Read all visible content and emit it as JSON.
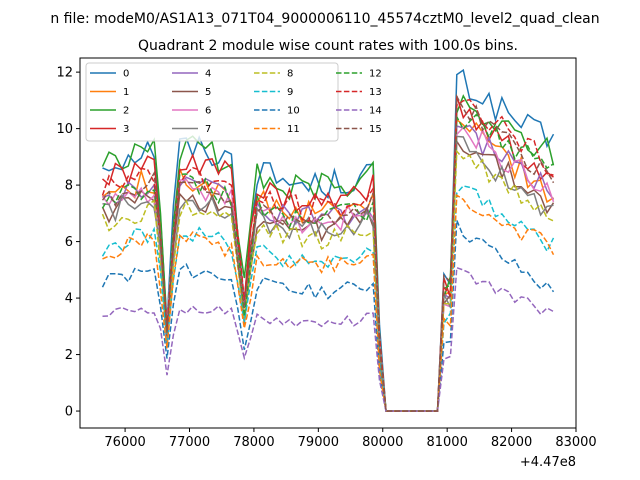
{
  "suptitle": "n file: modeM0/AS1A13_071T04_9000006110_45574cztM0_level2_quad_clean",
  "chart_data": {
    "type": "line",
    "title": "Quadrant 2 module wise count rates with 100.0s bins.",
    "xlabel": "",
    "ylabel": "",
    "x_offset_label": "+4.47e8",
    "xlim": [
      75300,
      83000
    ],
    "ylim": [
      -0.6,
      12.5
    ],
    "xticks": [
      76000,
      77000,
      78000,
      79000,
      80000,
      81000,
      82000,
      83000
    ],
    "yticks": [
      0,
      2,
      4,
      6,
      8,
      10,
      12
    ],
    "grid": false,
    "legend": {
      "position": "top-left",
      "columns": 4
    },
    "series": [
      {
        "name": "0",
        "color": "#1f77b4",
        "dash": "solid",
        "base": 8.7,
        "peak": 11.8,
        "end": 9.4
      },
      {
        "name": "1",
        "color": "#ff7f0e",
        "dash": "solid",
        "base": 7.6,
        "peak": 10.5,
        "end": 7.6
      },
      {
        "name": "2",
        "color": "#2ca02c",
        "dash": "solid",
        "base": 8.6,
        "peak": 11.0,
        "end": 9.2
      },
      {
        "name": "3",
        "color": "#d62728",
        "dash": "solid",
        "base": 8.1,
        "peak": 10.9,
        "end": 8.2
      },
      {
        "name": "4",
        "color": "#9467bd",
        "dash": "solid",
        "base": 7.4,
        "peak": 10.1,
        "end": 7.8
      },
      {
        "name": "5",
        "color": "#8c564b",
        "dash": "solid",
        "base": 7.0,
        "peak": 9.8,
        "end": 7.2
      },
      {
        "name": "6",
        "color": "#e377c2",
        "dash": "solid",
        "base": 7.3,
        "peak": 10.3,
        "end": 7.6
      },
      {
        "name": "7",
        "color": "#7f7f7f",
        "dash": "solid",
        "base": 7.0,
        "peak": 9.6,
        "end": 7.0
      },
      {
        "name": "8",
        "color": "#bcbd22",
        "dash": "dashed",
        "base": 6.6,
        "peak": 9.3,
        "end": 6.8
      },
      {
        "name": "9",
        "color": "#17becf",
        "dash": "dashed",
        "base": 5.8,
        "peak": 8.0,
        "end": 5.8
      },
      {
        "name": "10",
        "color": "#1f77b4",
        "dash": "dashed",
        "base": 4.6,
        "peak": 6.6,
        "end": 4.2
      },
      {
        "name": "11",
        "color": "#ff7f0e",
        "dash": "dashed",
        "base": 5.6,
        "peak": 7.6,
        "end": 5.8
      },
      {
        "name": "12",
        "color": "#2ca02c",
        "dash": "dashed",
        "base": 7.4,
        "peak": 10.6,
        "end": 8.6
      },
      {
        "name": "13",
        "color": "#d62728",
        "dash": "dashed",
        "base": 7.8,
        "peak": 11.3,
        "end": 8.6
      },
      {
        "name": "14",
        "color": "#9467bd",
        "dash": "dashed",
        "base": 3.4,
        "peak": 5.0,
        "end": 3.4
      },
      {
        "name": "15",
        "color": "#8c564b",
        "dash": "dashed",
        "base": 7.5,
        "peak": 11.2,
        "end": 8.2
      }
    ],
    "time_profile": {
      "start": 75650,
      "end": 82650,
      "step": 100,
      "dips": [
        [
          76650,
          0.35
        ],
        [
          77850,
          0.5
        ]
      ],
      "zero_from": 80000,
      "zero_to": 80900,
      "drop_start": 79900,
      "rise_end": 81100
    }
  }
}
